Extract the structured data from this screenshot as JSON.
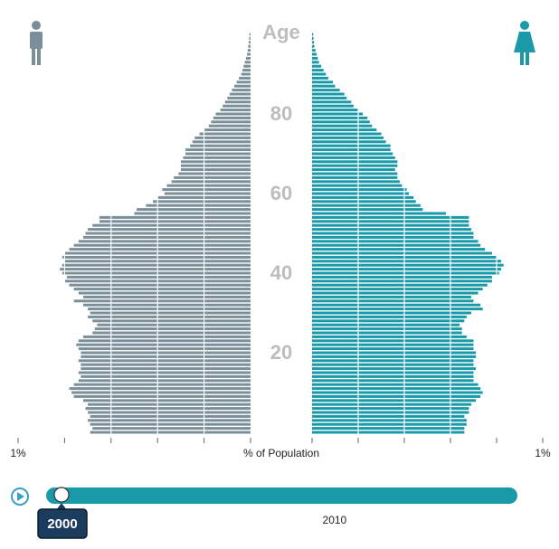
{
  "chart_data": {
    "type": "population-pyramid",
    "ylabel": "Age",
    "xlabel": "% of Population",
    "ylim": [
      0,
      100
    ],
    "yticks": [
      20,
      40,
      60,
      80
    ],
    "xlim": [
      0,
      1
    ],
    "xticks": [
      {
        "value": 1,
        "label": "1%"
      }
    ],
    "gridlines": [
      0.2,
      0.4,
      0.6,
      0.8
    ],
    "x": [
      0,
      1,
      2,
      3,
      4,
      5,
      6,
      7,
      8,
      9,
      10,
      11,
      12,
      13,
      14,
      15,
      16,
      17,
      18,
      19,
      20,
      21,
      22,
      23,
      24,
      25,
      26,
      27,
      28,
      29,
      30,
      31,
      32,
      33,
      34,
      35,
      36,
      37,
      38,
      39,
      40,
      41,
      42,
      43,
      44,
      45,
      46,
      47,
      48,
      49,
      50,
      51,
      52,
      53,
      54,
      55,
      56,
      57,
      58,
      59,
      60,
      61,
      62,
      63,
      64,
      65,
      66,
      67,
      68,
      69,
      70,
      71,
      72,
      73,
      74,
      75,
      76,
      77,
      78,
      79,
      80,
      81,
      82,
      83,
      84,
      85,
      86,
      87,
      88,
      89,
      90,
      91,
      92,
      93,
      94,
      95,
      96,
      97,
      98,
      99,
      100
    ],
    "series": [
      {
        "side": "left",
        "color": "#7b8f9a",
        "values": [
          0.69,
          0.68,
          0.69,
          0.7,
          0.69,
          0.7,
          0.71,
          0.7,
          0.72,
          0.76,
          0.77,
          0.78,
          0.76,
          0.74,
          0.73,
          0.74,
          0.73,
          0.73,
          0.74,
          0.73,
          0.73,
          0.74,
          0.75,
          0.74,
          0.72,
          0.68,
          0.67,
          0.66,
          0.68,
          0.7,
          0.69,
          0.7,
          0.72,
          0.76,
          0.72,
          0.74,
          0.76,
          0.78,
          0.8,
          0.79,
          0.81,
          0.82,
          0.81,
          0.8,
          0.81,
          0.8,
          0.78,
          0.76,
          0.74,
          0.72,
          0.71,
          0.7,
          0.68,
          0.65,
          0.65,
          0.5,
          0.49,
          0.45,
          0.42,
          0.4,
          0.37,
          0.38,
          0.36,
          0.34,
          0.33,
          0.31,
          0.3,
          0.3,
          0.3,
          0.29,
          0.28,
          0.28,
          0.26,
          0.25,
          0.24,
          0.22,
          0.2,
          0.18,
          0.17,
          0.16,
          0.15,
          0.13,
          0.12,
          0.11,
          0.1,
          0.09,
          0.08,
          0.07,
          0.06,
          0.05,
          0.04,
          0.035,
          0.03,
          0.025,
          0.02,
          0.015,
          0.012,
          0.01,
          0.008,
          0.006,
          0.005
        ]
      },
      {
        "side": "right",
        "color": "#1a9aa8",
        "values": [
          0.66,
          0.66,
          0.67,
          0.67,
          0.66,
          0.68,
          0.68,
          0.69,
          0.71,
          0.73,
          0.74,
          0.73,
          0.72,
          0.7,
          0.7,
          0.7,
          0.71,
          0.7,
          0.7,
          0.71,
          0.71,
          0.7,
          0.7,
          0.7,
          0.67,
          0.65,
          0.65,
          0.64,
          0.66,
          0.67,
          0.69,
          0.74,
          0.73,
          0.7,
          0.69,
          0.72,
          0.74,
          0.76,
          0.78,
          0.78,
          0.81,
          0.82,
          0.83,
          0.82,
          0.8,
          0.78,
          0.75,
          0.73,
          0.72,
          0.7,
          0.7,
          0.69,
          0.68,
          0.68,
          0.68,
          0.58,
          0.48,
          0.47,
          0.45,
          0.44,
          0.42,
          0.41,
          0.39,
          0.38,
          0.37,
          0.37,
          0.36,
          0.37,
          0.37,
          0.36,
          0.35,
          0.34,
          0.34,
          0.32,
          0.31,
          0.3,
          0.28,
          0.26,
          0.25,
          0.24,
          0.22,
          0.2,
          0.18,
          0.17,
          0.15,
          0.14,
          0.12,
          0.1,
          0.09,
          0.07,
          0.06,
          0.05,
          0.04,
          0.03,
          0.025,
          0.02,
          0.015,
          0.01,
          0.008,
          0.006,
          0.005
        ]
      }
    ],
    "slider": {
      "value": 2000,
      "range": [
        2000,
        2016
      ],
      "ticks": [
        2010
      ]
    }
  }
}
